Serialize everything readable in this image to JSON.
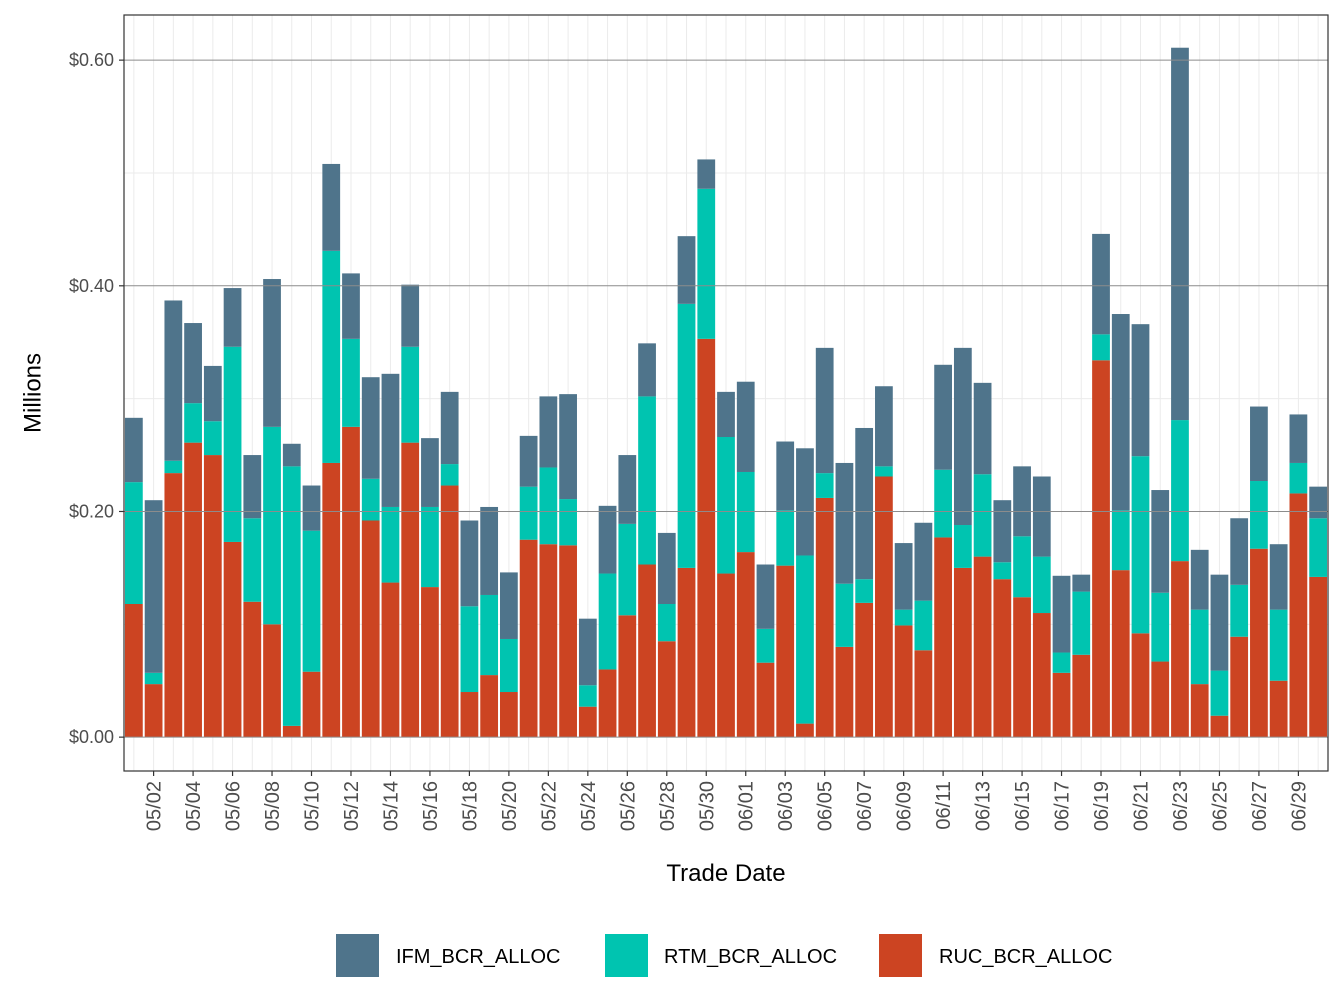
{
  "chart_data": {
    "type": "bar",
    "stacked": true,
    "title": "",
    "xlabel": "Trade Date",
    "ylabel": "Millions",
    "ylim": [
      -0.03,
      0.64
    ],
    "y_ticks": [
      0,
      0.2,
      0.4,
      0.6
    ],
    "y_tick_labels": [
      "$0.00",
      "$0.20",
      "$0.40",
      "$0.60"
    ],
    "x_tick_labels": [
      "05/02",
      "05/04",
      "05/06",
      "05/08",
      "05/10",
      "05/12",
      "05/14",
      "05/16",
      "05/18",
      "05/20",
      "05/22",
      "05/24",
      "05/26",
      "05/28",
      "05/30",
      "06/01",
      "06/03",
      "06/05",
      "06/07",
      "06/09",
      "06/11",
      "06/13",
      "06/15",
      "06/17",
      "06/19",
      "06/21",
      "06/23",
      "06/25",
      "06/27",
      "06/29"
    ],
    "grid": true,
    "legend_position": "bottom",
    "categories": [
      "05/01",
      "05/02",
      "05/03",
      "05/04",
      "05/05",
      "05/06",
      "05/07",
      "05/08",
      "05/09",
      "05/10",
      "05/11",
      "05/12",
      "05/13",
      "05/14",
      "05/15",
      "05/16",
      "05/17",
      "05/18",
      "05/19",
      "05/20",
      "05/21",
      "05/22",
      "05/23",
      "05/24",
      "05/25",
      "05/26",
      "05/27",
      "05/28",
      "05/29",
      "05/30",
      "05/31",
      "06/01",
      "06/02",
      "06/03",
      "06/04",
      "06/05",
      "06/06",
      "06/07",
      "06/08",
      "06/09",
      "06/10",
      "06/11",
      "06/12",
      "06/13",
      "06/14",
      "06/15",
      "06/16",
      "06/17",
      "06/18",
      "06/19",
      "06/20",
      "06/21",
      "06/22",
      "06/23",
      "06/24",
      "06/25",
      "06/26",
      "06/27",
      "06/28",
      "06/29",
      "06/30"
    ],
    "series": [
      {
        "name": "RUC_BCR_ALLOC",
        "color": "#cc4422",
        "values": [
          0.118,
          0.047,
          0.234,
          0.261,
          0.25,
          0.173,
          0.12,
          0.1,
          0.01,
          0.058,
          0.243,
          0.275,
          0.192,
          0.137,
          0.261,
          0.133,
          0.223,
          0.04,
          0.055,
          0.04,
          0.175,
          0.171,
          0.17,
          0.027,
          0.06,
          0.108,
          0.153,
          0.085,
          0.15,
          0.353,
          0.145,
          0.164,
          0.066,
          0.152,
          0.012,
          0.212,
          0.08,
          0.119,
          0.231,
          0.099,
          0.077,
          0.177,
          0.15,
          0.16,
          0.14,
          0.124,
          0.11,
          0.057,
          0.073,
          0.334,
          0.148,
          0.092,
          0.067,
          0.156,
          0.047,
          0.019,
          0.089,
          0.167,
          0.05,
          0.216,
          0.142
        ]
      },
      {
        "name": "RTM_BCR_ALLOC",
        "color": "#00c4b0",
        "values": [
          0.108,
          0.01,
          0.011,
          0.035,
          0.03,
          0.173,
          0.074,
          0.175,
          0.23,
          0.125,
          0.188,
          0.078,
          0.037,
          0.067,
          0.085,
          0.071,
          0.019,
          0.076,
          0.071,
          0.047,
          0.047,
          0.068,
          0.041,
          0.019,
          0.085,
          0.081,
          0.149,
          0.033,
          0.234,
          0.133,
          0.121,
          0.071,
          0.03,
          0.049,
          0.149,
          0.022,
          0.056,
          0.021,
          0.009,
          0.014,
          0.044,
          0.06,
          0.038,
          0.073,
          0.015,
          0.054,
          0.05,
          0.018,
          0.056,
          0.023,
          0.053,
          0.157,
          0.061,
          0.125,
          0.066,
          0.04,
          0.046,
          0.06,
          0.063,
          0.027,
          0.052
        ]
      },
      {
        "name": "IFM_BCR_ALLOC",
        "color": "#4f748b",
        "values": [
          0.057,
          0.153,
          0.142,
          0.071,
          0.049,
          0.052,
          0.056,
          0.131,
          0.02,
          0.04,
          0.077,
          0.058,
          0.09,
          0.118,
          0.055,
          0.061,
          0.064,
          0.076,
          0.078,
          0.059,
          0.045,
          0.063,
          0.093,
          0.059,
          0.06,
          0.061,
          0.047,
          0.063,
          0.06,
          0.026,
          0.04,
          0.08,
          0.057,
          0.061,
          0.095,
          0.111,
          0.107,
          0.134,
          0.071,
          0.059,
          0.069,
          0.093,
          0.157,
          0.081,
          0.055,
          0.062,
          0.071,
          0.068,
          0.015,
          0.089,
          0.174,
          0.117,
          0.091,
          0.33,
          0.053,
          0.085,
          0.059,
          0.066,
          0.058,
          0.043,
          0.028
        ]
      }
    ],
    "legend_order": [
      "IFM_BCR_ALLOC",
      "RTM_BCR_ALLOC",
      "RUC_BCR_ALLOC"
    ]
  }
}
